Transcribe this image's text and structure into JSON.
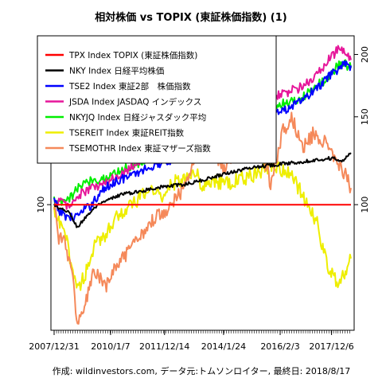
{
  "chart_data": {
    "type": "line",
    "title": "相対株価 vs TOPIX (東証株価指数) (1)",
    "footer": "作成: wildinvestors.com, データ元:トムソンロイター, 最終日: 2018/8/17",
    "x_start": "2007-12-31",
    "x_end": "2018-08-17",
    "x_tick_labels": [
      {
        "date": "2007-12-31",
        "label": "2007/12/31"
      },
      {
        "date": "2010-01-07",
        "label": "2010/1/7"
      },
      {
        "date": "2011-12-14",
        "label": "2011/12/14"
      },
      {
        "date": "2014-01-24",
        "label": "2014/1/24"
      },
      {
        "date": "2016-02-03",
        "label": "2016/2/3"
      },
      {
        "date": "2017-12-06",
        "label": "2017/12/6"
      }
    ],
    "y_scale": "log",
    "ylim": [
      56,
      218
    ],
    "y_ticks": [
      100,
      150,
      200
    ],
    "legend_position": "top-left",
    "series": [
      {
        "name": "TPX Index TOPIX (東証株価指数)",
        "color": "#ff0000",
        "width": 2,
        "points": [
          [
            "2007-12-31",
            100
          ],
          [
            "2018-08-17",
            100
          ]
        ]
      },
      {
        "name": "NKY Index 日経平均株価",
        "color": "#000000",
        "width": 2,
        "points": [
          [
            "2007-12-31",
            100
          ],
          [
            "2008-03-01",
            98
          ],
          [
            "2008-07-01",
            97
          ],
          [
            "2008-11-01",
            90
          ],
          [
            "2009-03-01",
            95
          ],
          [
            "2009-07-01",
            99
          ],
          [
            "2009-12-01",
            102
          ],
          [
            "2010-06-01",
            105
          ],
          [
            "2011-01-01",
            106
          ],
          [
            "2011-08-01",
            108
          ],
          [
            "2012-03-01",
            109
          ],
          [
            "2012-10-01",
            110
          ],
          [
            "2013-05-01",
            112
          ],
          [
            "2014-01-01",
            115
          ],
          [
            "2014-08-01",
            117
          ],
          [
            "2015-03-01",
            119
          ],
          [
            "2015-10-01",
            120
          ],
          [
            "2016-05-01",
            121
          ],
          [
            "2016-12-01",
            122
          ],
          [
            "2017-06-01",
            123
          ],
          [
            "2018-01-01",
            124
          ],
          [
            "2018-05-01",
            122
          ],
          [
            "2018-08-17",
            127
          ]
        ]
      },
      {
        "name": "TSE2 Index 東証2部　株価指数",
        "color": "#0000ff",
        "width": 2,
        "points": [
          [
            "2007-12-31",
            102
          ],
          [
            "2008-03-01",
            97
          ],
          [
            "2008-08-01",
            94
          ],
          [
            "2008-11-01",
            95
          ],
          [
            "2009-04-01",
            99
          ],
          [
            "2009-10-01",
            107
          ],
          [
            "2010-04-01",
            112
          ],
          [
            "2010-10-01",
            114
          ],
          [
            "2011-04-01",
            118
          ],
          [
            "2011-10-01",
            121
          ],
          [
            "2012-06-01",
            124
          ],
          [
            "2013-01-01",
            128
          ],
          [
            "2013-06-01",
            133
          ],
          [
            "2014-01-01",
            138
          ],
          [
            "2014-08-01",
            142
          ],
          [
            "2015-03-01",
            148
          ],
          [
            "2015-09-01",
            152
          ],
          [
            "2016-03-01",
            154
          ],
          [
            "2016-10-01",
            160
          ],
          [
            "2017-04-01",
            168
          ],
          [
            "2017-10-01",
            178
          ],
          [
            "2018-02-01",
            186
          ],
          [
            "2018-05-01",
            190
          ],
          [
            "2018-08-17",
            190
          ]
        ]
      },
      {
        "name": "JSDA Index JASDAQ インデックス",
        "color": "#e6169a",
        "width": 2,
        "points": [
          [
            "2007-12-31",
            100
          ],
          [
            "2008-03-01",
            102
          ],
          [
            "2008-08-01",
            99
          ],
          [
            "2008-11-01",
            104
          ],
          [
            "2009-05-01",
            108
          ],
          [
            "2009-11-01",
            110
          ],
          [
            "2010-05-01",
            115
          ],
          [
            "2010-11-01",
            120
          ],
          [
            "2011-05-01",
            125
          ],
          [
            "2011-11-01",
            130
          ],
          [
            "2012-05-01",
            133
          ],
          [
            "2012-11-01",
            137
          ],
          [
            "2013-05-01",
            146
          ],
          [
            "2013-11-01",
            148
          ],
          [
            "2014-05-01",
            152
          ],
          [
            "2014-11-01",
            155
          ],
          [
            "2015-05-01",
            158
          ],
          [
            "2015-11-01",
            165
          ],
          [
            "2016-05-01",
            168
          ],
          [
            "2016-11-01",
            172
          ],
          [
            "2017-05-01",
            180
          ],
          [
            "2017-11-01",
            195
          ],
          [
            "2018-03-01",
            205
          ],
          [
            "2018-05-01",
            203
          ],
          [
            "2018-08-17",
            195
          ]
        ]
      },
      {
        "name": "NKYJQ Index 日経ジャスダック平均",
        "color": "#00ee00",
        "width": 2,
        "points": [
          [
            "2007-12-31",
            102
          ],
          [
            "2008-03-01",
            100
          ],
          [
            "2008-08-01",
            103
          ],
          [
            "2008-11-01",
            108
          ],
          [
            "2009-05-01",
            112
          ],
          [
            "2009-11-01",
            113
          ],
          [
            "2010-05-01",
            117
          ],
          [
            "2010-11-01",
            120
          ],
          [
            "2011-05-01",
            124
          ],
          [
            "2011-11-01",
            128
          ],
          [
            "2012-05-01",
            131
          ],
          [
            "2012-11-01",
            136
          ],
          [
            "2013-05-01",
            142
          ],
          [
            "2013-11-01",
            141
          ],
          [
            "2014-05-01",
            146
          ],
          [
            "2014-11-01",
            150
          ],
          [
            "2015-05-01",
            152
          ],
          [
            "2015-11-01",
            158
          ],
          [
            "2016-05-01",
            160
          ],
          [
            "2016-11-01",
            163
          ],
          [
            "2017-05-01",
            172
          ],
          [
            "2017-11-01",
            180
          ],
          [
            "2018-03-01",
            190
          ],
          [
            "2018-05-01",
            193
          ],
          [
            "2018-08-17",
            188
          ]
        ]
      },
      {
        "name": "TSEREIT Index 東証REIT指数",
        "color": "#eeee00",
        "width": 2,
        "points": [
          [
            "2007-12-31",
            96
          ],
          [
            "2008-03-01",
            92
          ],
          [
            "2008-06-01",
            86
          ],
          [
            "2008-09-01",
            74
          ],
          [
            "2008-11-01",
            68
          ],
          [
            "2009-02-01",
            72
          ],
          [
            "2009-06-01",
            82
          ],
          [
            "2009-10-01",
            86
          ],
          [
            "2010-03-01",
            94
          ],
          [
            "2010-08-01",
            98
          ],
          [
            "2011-01-01",
            102
          ],
          [
            "2011-06-01",
            108
          ],
          [
            "2011-11-01",
            104
          ],
          [
            "2012-03-01",
            110
          ],
          [
            "2012-08-01",
            112
          ],
          [
            "2013-01-01",
            118
          ],
          [
            "2013-05-01",
            108
          ],
          [
            "2013-10-01",
            112
          ],
          [
            "2014-03-01",
            110
          ],
          [
            "2014-08-01",
            112
          ],
          [
            "2015-01-01",
            114
          ],
          [
            "2015-05-01",
            116
          ],
          [
            "2015-10-01",
            120
          ],
          [
            "2016-03-01",
            118
          ],
          [
            "2016-08-01",
            112
          ],
          [
            "2017-01-01",
            102
          ],
          [
            "2017-06-01",
            92
          ],
          [
            "2017-10-01",
            76
          ],
          [
            "2018-02-01",
            70
          ],
          [
            "2018-05-01",
            72
          ],
          [
            "2018-08-17",
            78
          ]
        ]
      },
      {
        "name": "TSEMOTHR Index 東証マザーズ指数",
        "color": "#f5895a",
        "width": 2,
        "points": [
          [
            "2007-12-31",
            101
          ],
          [
            "2008-03-01",
            86
          ],
          [
            "2008-06-01",
            84
          ],
          [
            "2008-09-01",
            70
          ],
          [
            "2008-11-01",
            58
          ],
          [
            "2009-02-01",
            62
          ],
          [
            "2009-06-01",
            74
          ],
          [
            "2009-11-01",
            68
          ],
          [
            "2010-04-01",
            76
          ],
          [
            "2010-09-01",
            80
          ],
          [
            "2011-03-01",
            88
          ],
          [
            "2011-08-01",
            94
          ],
          [
            "2012-01-01",
            98
          ],
          [
            "2012-06-01",
            104
          ],
          [
            "2012-11-01",
            112
          ],
          [
            "2013-04-01",
            140
          ],
          [
            "2013-09-01",
            128
          ],
          [
            "2014-02-01",
            118
          ],
          [
            "2014-07-01",
            128
          ],
          [
            "2015-01-01",
            142
          ],
          [
            "2015-05-01",
            138
          ],
          [
            "2015-10-01",
            110
          ],
          [
            "2016-03-01",
            140
          ],
          [
            "2016-07-01",
            150
          ],
          [
            "2016-12-01",
            130
          ],
          [
            "2017-05-01",
            140
          ],
          [
            "2017-10-01",
            132
          ],
          [
            "2018-01-01",
            125
          ],
          [
            "2018-05-01",
            118
          ],
          [
            "2018-08-17",
            108
          ]
        ]
      }
    ]
  }
}
